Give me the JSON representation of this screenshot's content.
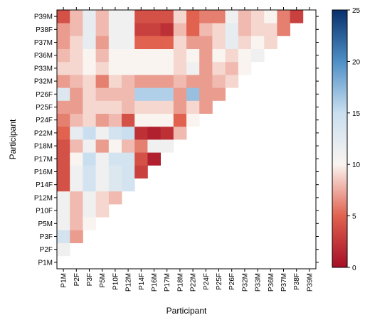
{
  "chart_data": {
    "type": "heatmap",
    "title": "",
    "xlabel": "Participant",
    "ylabel": "Participant",
    "participants": [
      "P1M",
      "P2F",
      "P3F",
      "P5M",
      "P10F",
      "P12M",
      "P14F",
      "P16M",
      "P17M",
      "P18M",
      "P22M",
      "P24F",
      "P25F",
      "P26F",
      "P32M",
      "P33M",
      "P36M",
      "P37M",
      "P38F",
      "P39M"
    ],
    "colorbar": {
      "min": 0,
      "max": 25,
      "ticks": [
        0,
        5,
        10,
        15,
        20,
        25
      ],
      "low_color": "#a50f26",
      "mid_color": "#faf4f0",
      "high_color": "#08306b"
    },
    "cells": [
      [
        "P2F",
        "P1M",
        11
      ],
      [
        "P3F",
        "P1M",
        14
      ],
      [
        "P3F",
        "P2F",
        7
      ],
      [
        "P5M",
        "P1M",
        11
      ],
      [
        "P5M",
        "P2F",
        8
      ],
      [
        "P5M",
        "P3F",
        10
      ],
      [
        "P10F",
        "P1M",
        11
      ],
      [
        "P10F",
        "P2F",
        8
      ],
      [
        "P10F",
        "P3F",
        11
      ],
      [
        "P10F",
        "P5M",
        9
      ],
      [
        "P12M",
        "P1M",
        11
      ],
      [
        "P12M",
        "P2F",
        8
      ],
      [
        "P12M",
        "P3F",
        11
      ],
      [
        "P12M",
        "P5M",
        9
      ],
      [
        "P12M",
        "P10F",
        8
      ],
      [
        "P14F",
        "P1M",
        4
      ],
      [
        "P14F",
        "P2F",
        11
      ],
      [
        "P14F",
        "P3F",
        14
      ],
      [
        "P14F",
        "P5M",
        11
      ],
      [
        "P14F",
        "P10F",
        13
      ],
      [
        "P14F",
        "P12M",
        14
      ],
      [
        "P16M",
        "P1M",
        4
      ],
      [
        "P16M",
        "P2F",
        11
      ],
      [
        "P16M",
        "P3F",
        14
      ],
      [
        "P16M",
        "P5M",
        11
      ],
      [
        "P16M",
        "P10F",
        13
      ],
      [
        "P16M",
        "P12M",
        14
      ],
      [
        "P16M",
        "P14F",
        3
      ],
      [
        "P17M",
        "P1M",
        4
      ],
      [
        "P17M",
        "P2F",
        10
      ],
      [
        "P17M",
        "P3F",
        15
      ],
      [
        "P17M",
        "P5M",
        11
      ],
      [
        "P17M",
        "P10F",
        14
      ],
      [
        "P17M",
        "P12M",
        14
      ],
      [
        "P17M",
        "P14F",
        4
      ],
      [
        "P17M",
        "P16M",
        1
      ],
      [
        "P18M",
        "P1M",
        4
      ],
      [
        "P18M",
        "P2F",
        8
      ],
      [
        "P18M",
        "P3F",
        11
      ],
      [
        "P18M",
        "P5M",
        7
      ],
      [
        "P18M",
        "P10F",
        10
      ],
      [
        "P18M",
        "P12M",
        8
      ],
      [
        "P18M",
        "P14F",
        6
      ],
      [
        "P18M",
        "P16M",
        11
      ],
      [
        "P18M",
        "P17M",
        11
      ],
      [
        "P22M",
        "P1M",
        5
      ],
      [
        "P22M",
        "P2F",
        12
      ],
      [
        "P22M",
        "P3F",
        15
      ],
      [
        "P22M",
        "P5M",
        11
      ],
      [
        "P22M",
        "P10F",
        14
      ],
      [
        "P22M",
        "P12M",
        15
      ],
      [
        "P22M",
        "P14F",
        2
      ],
      [
        "P22M",
        "P16M",
        1
      ],
      [
        "P22M",
        "P17M",
        2
      ],
      [
        "P22M",
        "P18M",
        8
      ],
      [
        "P24F",
        "P1M",
        6
      ],
      [
        "P24F",
        "P2F",
        8
      ],
      [
        "P24F",
        "P3F",
        9
      ],
      [
        "P24F",
        "P5M",
        7
      ],
      [
        "P24F",
        "P10F",
        8
      ],
      [
        "P24F",
        "P12M",
        4
      ],
      [
        "P24F",
        "P14F",
        10
      ],
      [
        "P24F",
        "P16M",
        10
      ],
      [
        "P24F",
        "P17M",
        10
      ],
      [
        "P24F",
        "P18M",
        5
      ],
      [
        "P24F",
        "P22M",
        10
      ],
      [
        "P25F",
        "P1M",
        7
      ],
      [
        "P25F",
        "P2F",
        7
      ],
      [
        "P25F",
        "P3F",
        9
      ],
      [
        "P25F",
        "P5M",
        9
      ],
      [
        "P25F",
        "P10F",
        9
      ],
      [
        "P25F",
        "P12M",
        8
      ],
      [
        "P25F",
        "P14F",
        9
      ],
      [
        "P25F",
        "P16M",
        9
      ],
      [
        "P25F",
        "P17M",
        9
      ],
      [
        "P25F",
        "P18M",
        7
      ],
      [
        "P25F",
        "P22M",
        9
      ],
      [
        "P25F",
        "P24F",
        7
      ],
      [
        "P26F",
        "P1M",
        13
      ],
      [
        "P26F",
        "P2F",
        7
      ],
      [
        "P26F",
        "P3F",
        9
      ],
      [
        "P26F",
        "P5M",
        8
      ],
      [
        "P26F",
        "P10F",
        8
      ],
      [
        "P26F",
        "P12M",
        8
      ],
      [
        "P26F",
        "P14F",
        16
      ],
      [
        "P26F",
        "P16M",
        16
      ],
      [
        "P26F",
        "P17M",
        16
      ],
      [
        "P26F",
        "P18M",
        7
      ],
      [
        "P26F",
        "P22M",
        17
      ],
      [
        "P26F",
        "P24F",
        7
      ],
      [
        "P26F",
        "P25F",
        7
      ],
      [
        "P32M",
        "P1M",
        7
      ],
      [
        "P32M",
        "P2F",
        8
      ],
      [
        "P32M",
        "P3F",
        9
      ],
      [
        "P32M",
        "P5M",
        6
      ],
      [
        "P32M",
        "P10F",
        9
      ],
      [
        "P32M",
        "P12M",
        8
      ],
      [
        "P32M",
        "P14F",
        7
      ],
      [
        "P32M",
        "P16M",
        7
      ],
      [
        "P32M",
        "P17M",
        7
      ],
      [
        "P32M",
        "P18M",
        8
      ],
      [
        "P32M",
        "P22M",
        7
      ],
      [
        "P32M",
        "P24F",
        7
      ],
      [
        "P32M",
        "P25F",
        8
      ],
      [
        "P32M",
        "P26F",
        9
      ],
      [
        "P33M",
        "P1M",
        9
      ],
      [
        "P33M",
        "P2F",
        9
      ],
      [
        "P33M",
        "P3F",
        10
      ],
      [
        "P33M",
        "P5M",
        9
      ],
      [
        "P33M",
        "P10F",
        10
      ],
      [
        "P33M",
        "P12M",
        10
      ],
      [
        "P33M",
        "P14F",
        10
      ],
      [
        "P33M",
        "P16M",
        10
      ],
      [
        "P33M",
        "P17M",
        10
      ],
      [
        "P33M",
        "P18M",
        9
      ],
      [
        "P33M",
        "P22M",
        11
      ],
      [
        "P33M",
        "P24F",
        7
      ],
      [
        "P33M",
        "P25F",
        9
      ],
      [
        "P33M",
        "P26F",
        8
      ],
      [
        "P33M",
        "P32M",
        10
      ],
      [
        "P36M",
        "P1M",
        8
      ],
      [
        "P36M",
        "P2F",
        9
      ],
      [
        "P36M",
        "P3F",
        10
      ],
      [
        "P36M",
        "P5M",
        8
      ],
      [
        "P36M",
        "P10F",
        10
      ],
      [
        "P36M",
        "P12M",
        10
      ],
      [
        "P36M",
        "P14F",
        10
      ],
      [
        "P36M",
        "P16M",
        10
      ],
      [
        "P36M",
        "P17M",
        10
      ],
      [
        "P36M",
        "P18M",
        9
      ],
      [
        "P36M",
        "P22M",
        10
      ],
      [
        "P36M",
        "P24F",
        7
      ],
      [
        "P36M",
        "P25F",
        10
      ],
      [
        "P36M",
        "P26F",
        9
      ],
      [
        "P36M",
        "P32M",
        10
      ],
      [
        "P36M",
        "P33M",
        11
      ],
      [
        "P37M",
        "P1M",
        7
      ],
      [
        "P37M",
        "P2F",
        9
      ],
      [
        "P37M",
        "P3F",
        12
      ],
      [
        "P37M",
        "P5M",
        7
      ],
      [
        "P37M",
        "P10F",
        11
      ],
      [
        "P37M",
        "P12M",
        11
      ],
      [
        "P37M",
        "P14F",
        5
      ],
      [
        "P37M",
        "P16M",
        5
      ],
      [
        "P37M",
        "P17M",
        5
      ],
      [
        "P37M",
        "P18M",
        9
      ],
      [
        "P37M",
        "P22M",
        7
      ],
      [
        "P37M",
        "P24F",
        7
      ],
      [
        "P37M",
        "P25F",
        9
      ],
      [
        "P37M",
        "P26F",
        12
      ],
      [
        "P37M",
        "P32M",
        9
      ],
      [
        "P37M",
        "P33M",
        10
      ],
      [
        "P37M",
        "P36M",
        9
      ],
      [
        "P38F",
        "P1M",
        7
      ],
      [
        "P38F",
        "P2F",
        8
      ],
      [
        "P38F",
        "P3F",
        12
      ],
      [
        "P38F",
        "P5M",
        8
      ],
      [
        "P38F",
        "P10F",
        11
      ],
      [
        "P38F",
        "P12M",
        11
      ],
      [
        "P38F",
        "P14F",
        3
      ],
      [
        "P38F",
        "P16M",
        3
      ],
      [
        "P38F",
        "P17M",
        2
      ],
      [
        "P38F",
        "P18M",
        8
      ],
      [
        "P38F",
        "P22M",
        5
      ],
      [
        "P38F",
        "P24F",
        8
      ],
      [
        "P38F",
        "P25F",
        9
      ],
      [
        "P38F",
        "P26F",
        12
      ],
      [
        "P38F",
        "P32M",
        8
      ],
      [
        "P38F",
        "P33M",
        9
      ],
      [
        "P38F",
        "P36M",
        9
      ],
      [
        "P38F",
        "P37M",
        6
      ],
      [
        "P39M",
        "P1M",
        4
      ],
      [
        "P39M",
        "P2F",
        8
      ],
      [
        "P39M",
        "P3F",
        12
      ],
      [
        "P39M",
        "P5M",
        8
      ],
      [
        "P39M",
        "P10F",
        11
      ],
      [
        "P39M",
        "P12M",
        11
      ],
      [
        "P39M",
        "P14F",
        4
      ],
      [
        "P39M",
        "P16M",
        4
      ],
      [
        "P39M",
        "P17M",
        4
      ],
      [
        "P39M",
        "P18M",
        9
      ],
      [
        "P39M",
        "P22M",
        5
      ],
      [
        "P39M",
        "P24F",
        6
      ],
      [
        "P39M",
        "P25F",
        6
      ],
      [
        "P39M",
        "P26F",
        11
      ],
      [
        "P39M",
        "P32M",
        8
      ],
      [
        "P39M",
        "P33M",
        9
      ],
      [
        "P39M",
        "P36M",
        10
      ],
      [
        "P39M",
        "P37M",
        6
      ],
      [
        "P39M",
        "P38F",
        3
      ]
    ]
  }
}
